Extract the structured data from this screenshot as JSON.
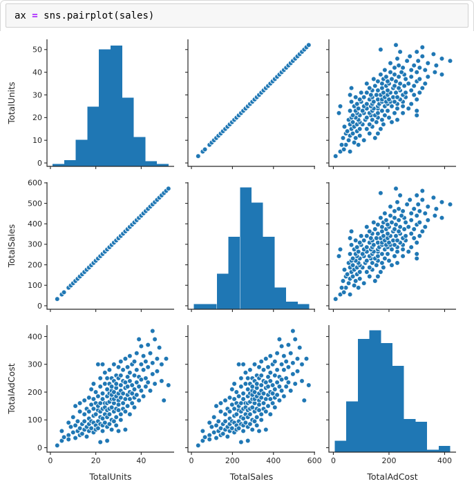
{
  "code_cell": {
    "lhs": "ax ",
    "operator": "=",
    "rhs": " sns.pairplot(sales)",
    "operator_color": "#aa22ff"
  },
  "chart_data": {
    "type": "pairplot",
    "grid": false,
    "legend": null,
    "variables": [
      {
        "name": "TotalUnits",
        "lim": [
          -1.5,
          54.5
        ],
        "ticks": [
          0,
          10,
          20,
          30,
          40,
          50
        ],
        "xticks": [
          0,
          20,
          40
        ]
      },
      {
        "name": "TotalSales",
        "lim": [
          -17,
          603
        ],
        "ticks": [
          0,
          100,
          200,
          300,
          400,
          500,
          600
        ],
        "xticks": [
          0,
          200,
          400,
          600
        ]
      },
      {
        "name": "TotalAdCost",
        "lim": [
          -16,
          441
        ],
        "ticks": [
          0,
          100,
          200,
          300,
          400
        ],
        "xticks": [
          0,
          200,
          400
        ]
      }
    ],
    "sales_per_unit": 11,
    "histograms": [
      {
        "var": "TotalUnits",
        "bin_start": 1,
        "bin_width": 5.1,
        "rel_heights": [
          0.02,
          0.05,
          0.21,
          0.47,
          0.92,
          0.95,
          0.54,
          0.23,
          0.04,
          0.02
        ]
      },
      {
        "var": "TotalSales",
        "bin_start": 11,
        "bin_width": 56.4,
        "rel_heights": [
          0.04,
          0.04,
          0.28,
          0.57,
          0.96,
          0.84,
          0.57,
          0.17,
          0.06,
          0.04
        ]
      },
      {
        "var": "TotalAdCost",
        "bin_start": 5,
        "bin_width": 41.5,
        "rel_heights": [
          0.09,
          0.4,
          0.89,
          0.96,
          0.86,
          0.68,
          0.26,
          0.24,
          0.02,
          0.05
        ]
      }
    ],
    "records_units_adcost": [
      [
        3,
        8
      ],
      [
        5,
        25
      ],
      [
        5,
        60
      ],
      [
        6,
        38
      ],
      [
        8,
        45
      ],
      [
        8,
        90
      ],
      [
        8,
        30
      ],
      [
        9,
        75
      ],
      [
        10,
        110
      ],
      [
        10,
        55
      ],
      [
        11,
        35
      ],
      [
        11,
        150
      ],
      [
        11,
        80
      ],
      [
        12,
        60
      ],
      [
        12,
        95
      ],
      [
        13,
        45
      ],
      [
        13,
        130
      ],
      [
        13,
        70
      ],
      [
        13,
        160
      ],
      [
        14,
        85
      ],
      [
        14,
        50
      ],
      [
        15,
        120
      ],
      [
        15,
        65
      ],
      [
        15,
        170
      ],
      [
        15,
        95
      ],
      [
        16,
        75
      ],
      [
        16,
        140
      ],
      [
        16,
        40
      ],
      [
        17,
        180
      ],
      [
        17,
        105
      ],
      [
        17,
        60
      ],
      [
        17,
        130
      ],
      [
        17,
        85
      ],
      [
        18,
        155
      ],
      [
        18,
        70
      ],
      [
        18,
        210
      ],
      [
        18,
        95
      ],
      [
        19,
        115
      ],
      [
        19,
        175
      ],
      [
        19,
        55
      ],
      [
        19,
        140
      ],
      [
        19,
        90
      ],
      [
        19,
        230
      ],
      [
        20,
        160
      ],
      [
        20,
        80
      ],
      [
        20,
        120
      ],
      [
        20,
        200
      ],
      [
        20,
        65
      ],
      [
        21,
        135
      ],
      [
        21,
        300
      ],
      [
        21,
        95
      ],
      [
        21,
        185
      ],
      [
        21,
        70
      ],
      [
        21,
        150
      ],
      [
        22,
        20
      ],
      [
        22,
        110
      ],
      [
        22,
        220
      ],
      [
        22,
        160
      ],
      [
        22,
        85
      ],
      [
        22,
        250
      ],
      [
        22,
        130
      ],
      [
        23,
        175
      ],
      [
        23,
        60
      ],
      [
        23,
        140
      ],
      [
        23,
        300
      ],
      [
        23,
        105
      ],
      [
        23,
        195
      ],
      [
        23,
        80
      ],
      [
        24,
        230
      ],
      [
        24,
        120
      ],
      [
        24,
        160
      ],
      [
        24,
        90
      ],
      [
        24,
        270
      ],
      [
        24,
        145
      ],
      [
        25,
        25
      ],
      [
        25,
        185
      ],
      [
        25,
        135
      ],
      [
        25,
        210
      ],
      [
        25,
        75
      ],
      [
        25,
        160
      ],
      [
        25,
        250
      ],
      [
        25,
        110
      ],
      [
        26,
        140
      ],
      [
        26,
        195
      ],
      [
        26,
        85
      ],
      [
        26,
        230
      ],
      [
        26,
        165
      ],
      [
        26,
        120
      ],
      [
        26,
        280
      ],
      [
        27,
        205
      ],
      [
        27,
        100
      ],
      [
        27,
        175
      ],
      [
        27,
        145
      ],
      [
        27,
        250
      ],
      [
        27,
        65
      ],
      [
        27,
        190
      ],
      [
        27,
        220
      ],
      [
        28,
        130
      ],
      [
        28,
        240
      ],
      [
        28,
        160
      ],
      [
        28,
        95
      ],
      [
        28,
        200
      ],
      [
        28,
        175
      ],
      [
        28,
        300
      ],
      [
        29,
        215
      ],
      [
        29,
        110
      ],
      [
        29,
        185
      ],
      [
        29,
        260
      ],
      [
        29,
        140
      ],
      [
        29,
        80
      ],
      [
        29,
        230
      ],
      [
        30,
        60
      ],
      [
        30,
        170
      ],
      [
        30,
        250
      ],
      [
        30,
        195
      ],
      [
        30,
        135
      ],
      [
        30,
        290
      ],
      [
        30,
        155
      ],
      [
        31,
        225
      ],
      [
        31,
        120
      ],
      [
        31,
        260
      ],
      [
        31,
        180
      ],
      [
        31,
        205
      ],
      [
        31,
        100
      ],
      [
        31,
        310
      ],
      [
        32,
        160
      ],
      [
        32,
        240
      ],
      [
        32,
        140
      ],
      [
        32,
        280
      ],
      [
        32,
        195
      ],
      [
        33,
        65
      ],
      [
        33,
        215
      ],
      [
        33,
        175
      ],
      [
        33,
        320
      ],
      [
        33,
        235
      ],
      [
        33,
        130
      ],
      [
        34,
        255
      ],
      [
        34,
        190
      ],
      [
        34,
        150
      ],
      [
        34,
        290
      ],
      [
        34,
        220
      ],
      [
        35,
        120
      ],
      [
        35,
        270
      ],
      [
        35,
        200
      ],
      [
        35,
        330
      ],
      [
        35,
        175
      ],
      [
        35,
        240
      ],
      [
        36,
        300
      ],
      [
        36,
        160
      ],
      [
        36,
        225
      ],
      [
        36,
        195
      ],
      [
        37,
        260
      ],
      [
        37,
        145
      ],
      [
        37,
        310
      ],
      [
        37,
        210
      ],
      [
        37,
        180
      ],
      [
        38,
        235
      ],
      [
        38,
        340
      ],
      [
        38,
        190
      ],
      [
        38,
        280
      ],
      [
        39,
        390
      ],
      [
        39,
        220
      ],
      [
        39,
        170
      ],
      [
        39,
        255
      ],
      [
        40,
        300
      ],
      [
        40,
        205
      ],
      [
        40,
        365
      ],
      [
        40,
        245
      ],
      [
        41,
        280
      ],
      [
        41,
        185
      ],
      [
        41,
        330
      ],
      [
        42,
        250
      ],
      [
        42,
        310
      ],
      [
        42,
        220
      ],
      [
        43,
        370
      ],
      [
        43,
        235
      ],
      [
        43,
        290
      ],
      [
        44,
        205
      ],
      [
        44,
        340
      ],
      [
        45,
        420
      ],
      [
        45,
        265
      ],
      [
        45,
        305
      ],
      [
        46,
        390
      ],
      [
        46,
        230
      ],
      [
        47,
        320
      ],
      [
        47,
        275
      ],
      [
        48,
        360
      ],
      [
        49,
        240
      ],
      [
        49,
        300
      ],
      [
        50,
        170
      ],
      [
        51,
        320
      ],
      [
        52,
        225
      ]
    ],
    "style": {
      "point_color": "#1f77b4",
      "bar_color": "#1f77b4",
      "point_edge_color": "#ffffff",
      "axis_color": "#262626"
    }
  }
}
